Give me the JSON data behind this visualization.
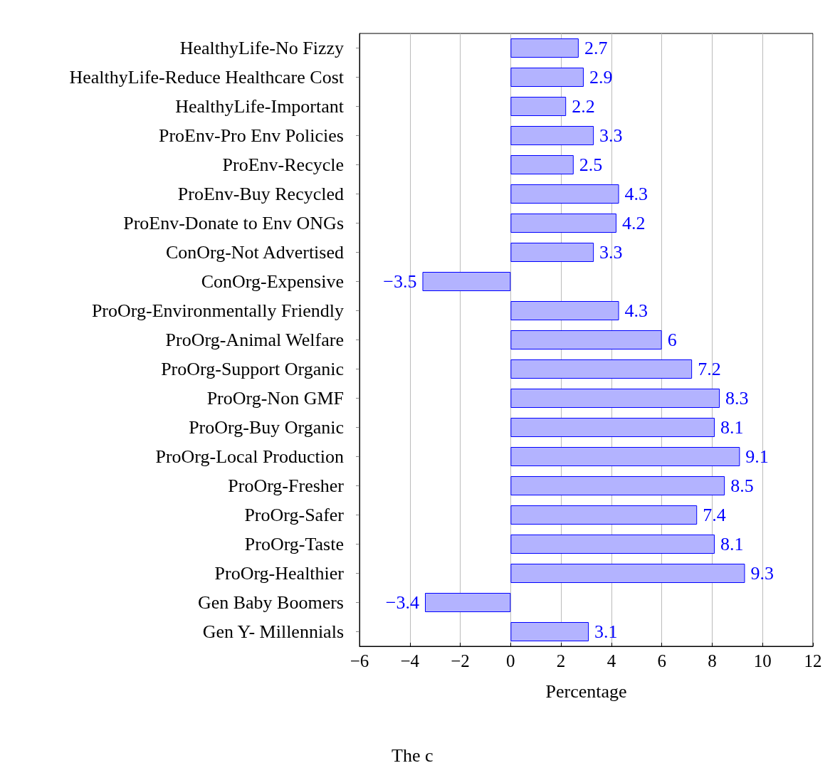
{
  "chart_data": {
    "type": "bar",
    "orientation": "horizontal",
    "xlabel": "Percentage",
    "annotations": [
      "The c"
    ],
    "categories": [
      "HealthyLife-No Fizzy",
      "HealthyLife-Reduce Healthcare Cost",
      "HealthyLife-Important",
      "ProEnv-Pro Env Policies",
      "ProEnv-Recycle",
      "ProEnv-Buy Recycled",
      "ProEnv-Donate to Env ONGs",
      "ConOrg-Not Advertised",
      "ConOrg-Expensive",
      "ProOrg-Environmentally Friendly",
      "ProOrg-Animal Welfare",
      "ProOrg-Support Organic",
      "ProOrg-Non GMF",
      "ProOrg-Buy Organic",
      "ProOrg-Local Production",
      "ProOrg-Fresher",
      "ProOrg-Safer",
      "ProOrg-Taste",
      "ProOrg-Healthier",
      "Gen Baby Boomers",
      "Gen Y- Millennials"
    ],
    "values": [
      2.7,
      2.9,
      2.2,
      3.3,
      2.5,
      4.3,
      4.2,
      3.3,
      -3.5,
      4.3,
      6,
      7.2,
      8.3,
      8.1,
      9.1,
      8.5,
      7.4,
      8.1,
      9.3,
      -3.4,
      3.1
    ],
    "color": "#b3b3ff",
    "data_labels": true,
    "xlim": [
      -6,
      12
    ],
    "xticks": [
      -6,
      -4,
      -2,
      0,
      2,
      4,
      6,
      8,
      10,
      12
    ],
    "grid": "x"
  }
}
